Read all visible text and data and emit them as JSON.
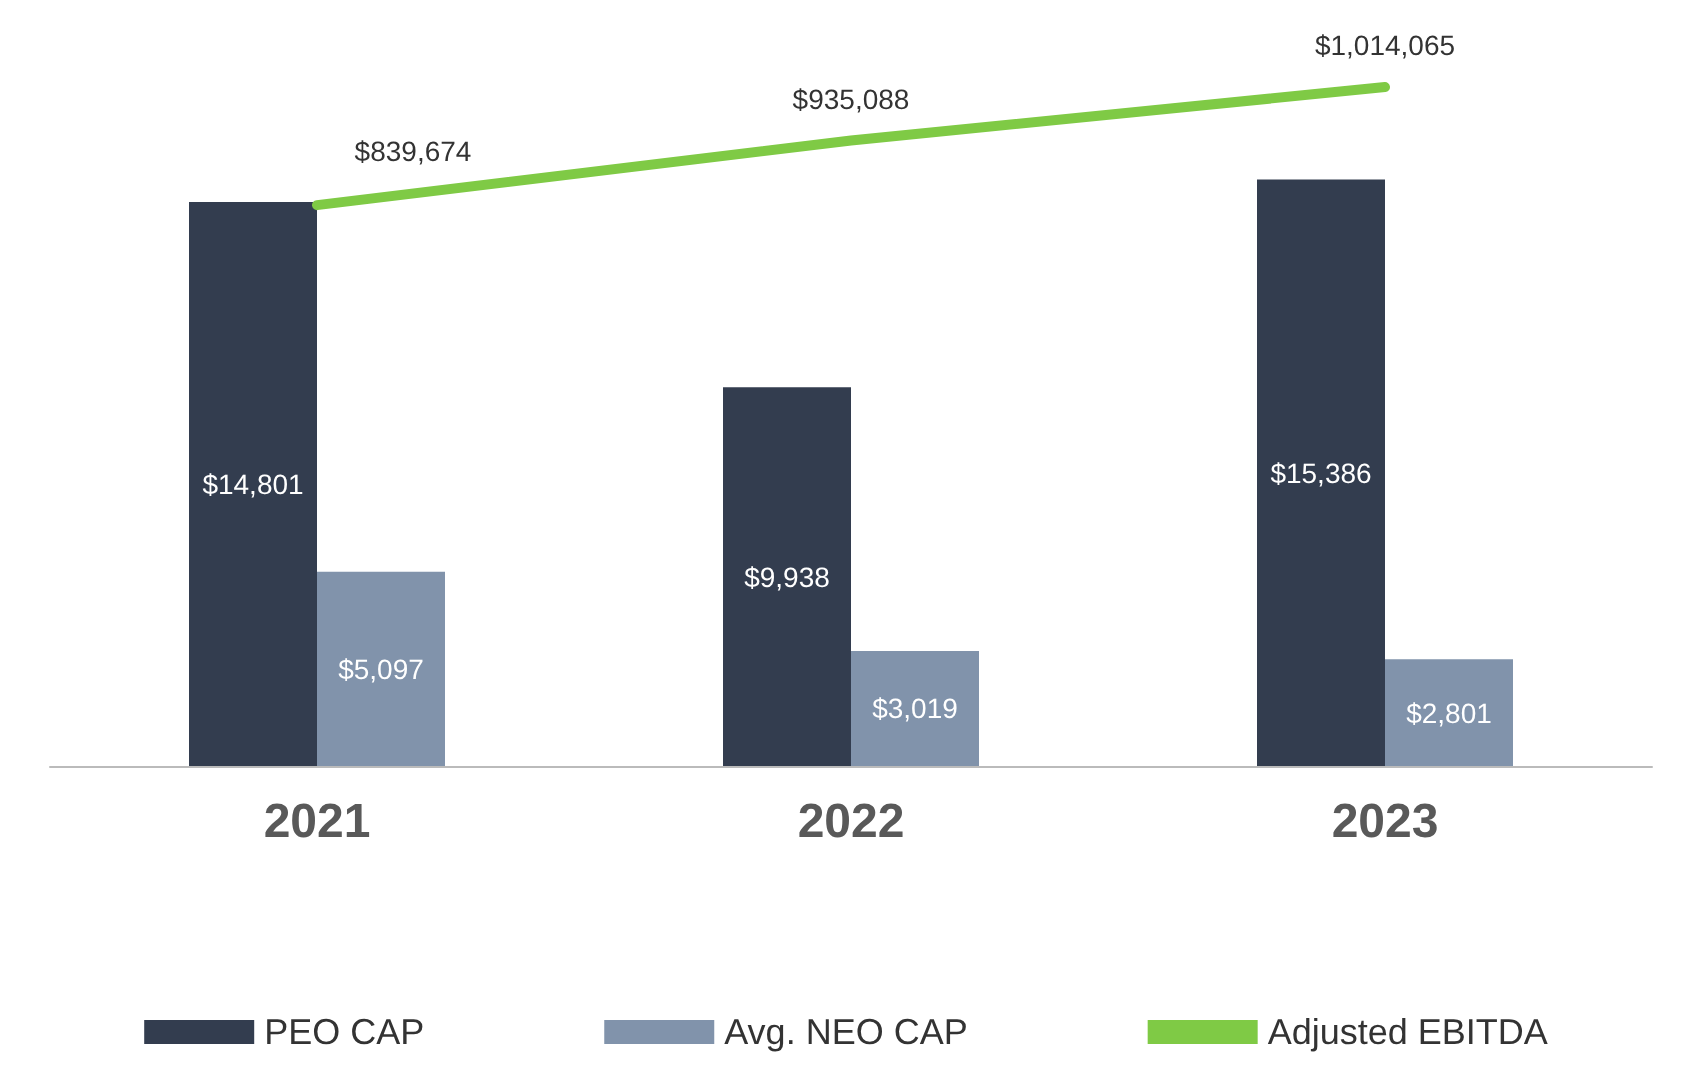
{
  "chart_data": {
    "type": "bar",
    "categories": [
      "2021",
      "2022",
      "2023"
    ],
    "series": [
      {
        "name": "PEO CAP",
        "color": "#333d4f",
        "values": [
          14801,
          9938,
          15386
        ],
        "value_labels": [
          "$14,801",
          "$9,938",
          "$15,386"
        ]
      },
      {
        "name": "Avg. NEO CAP",
        "color": "#8193ab",
        "values": [
          5097,
          3019,
          2801
        ],
        "value_labels": [
          "$5,097",
          "$3,019",
          "$2,801"
        ]
      },
      {
        "name": "Adjusted EBITDA",
        "color": "#7fca45",
        "type": "line",
        "axis": "y2",
        "values": [
          839674,
          935088,
          1014065
        ],
        "value_labels": [
          "$839,674",
          "$935,088",
          "$1,014,065"
        ]
      }
    ],
    "legend": "bottom",
    "marker": "none",
    "line_style": "solid"
  }
}
